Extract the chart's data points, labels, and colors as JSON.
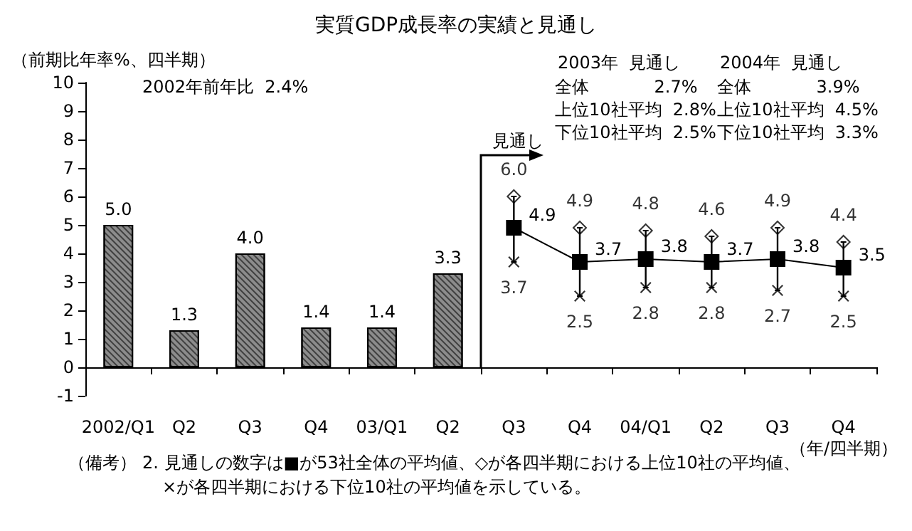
{
  "chart_data": {
    "type": "bar",
    "title": "実質GDP成長率の実績と見通し",
    "ylabel": "（前期比年率%、四半期）",
    "xlabel": "（年/四半期）",
    "categories": [
      "2002/Q1",
      "Q2",
      "Q3",
      "Q4",
      "03/Q1",
      "Q2",
      "Q3",
      "Q4",
      "04/Q1",
      "Q2",
      "Q3",
      "Q4"
    ],
    "series": [
      {
        "color": "#8c8c8c",
        "values": [
          5.0,
          1.3,
          4.0,
          1.4,
          1.4,
          3.3,
          null,
          null,
          null,
          null,
          null,
          null
        ],
        "value_labels": [
          "5.0",
          "1.3",
          "4.0",
          "1.4",
          "1.4",
          "3.3",
          null,
          null,
          null,
          null,
          null,
          null
        ]
      },
      {
        "type": "line",
        "color": "#000000",
        "marker": "square",
        "values": [
          null,
          null,
          null,
          null,
          null,
          null,
          4.9,
          3.7,
          3.8,
          3.7,
          3.8,
          3.5
        ],
        "value_labels": [
          null,
          null,
          null,
          null,
          null,
          null,
          "4.9",
          "3.7",
          "3.8",
          "3.7",
          "3.8",
          "3.5"
        ]
      },
      {
        "type": "scatter",
        "color": "#000000",
        "marker": "diamond",
        "values": [
          null,
          null,
          null,
          null,
          null,
          null,
          6.0,
          4.9,
          4.8,
          4.6,
          4.9,
          4.4
        ],
        "value_labels": [
          null,
          null,
          null,
          null,
          null,
          null,
          "6.0",
          "4.9",
          "4.8",
          "4.6",
          "4.9",
          "4.4"
        ]
      },
      {
        "type": "scatter",
        "color": "#000000",
        "marker": "cross",
        "values": [
          null,
          null,
          null,
          null,
          null,
          null,
          3.7,
          2.5,
          2.8,
          2.8,
          2.7,
          2.5
        ],
        "value_labels": [
          null,
          null,
          null,
          null,
          null,
          null,
          "3.7",
          "2.5",
          "2.8",
          "2.8",
          "2.7",
          "2.5"
        ]
      }
    ],
    "ylim": [
      -1,
      10
    ],
    "yticks": [
      -1,
      0,
      1,
      2,
      3,
      4,
      5,
      6,
      7,
      8,
      9,
      10
    ],
    "annotations": [
      "2002年前年比  2.4%",
      "2003年  見通し",
      "全体            2.7%",
      "上位10社平均  2.8%",
      "下位10社平均  2.5%",
      "2004年  見通し",
      "全体            3.9%",
      "上位10社平均  4.5%",
      "下位10社平均  3.3%",
      "見通し",
      "（備考）",
      "2. 見通しの数字は■が53社全体の平均値、◇が各四半期における上位10社の平均値、",
      "×が各四半期における下位10社の平均値を示している。"
    ]
  }
}
